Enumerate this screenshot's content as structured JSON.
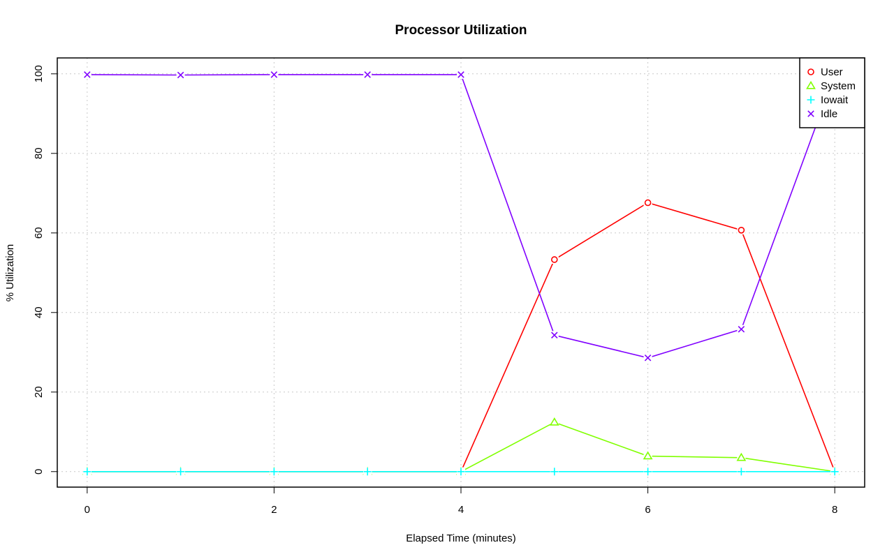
{
  "chart_data": {
    "type": "line",
    "title": "Processor Utilization",
    "xlabel": "Elapsed Time (minutes)",
    "ylabel": "% Utilization",
    "x": [
      0,
      1,
      2,
      3,
      4,
      5,
      6,
      7,
      8
    ],
    "xlim": [
      -0.32,
      8.32
    ],
    "ylim": [
      -3.9,
      104
    ],
    "xticks": [
      0,
      2,
      4,
      6,
      8
    ],
    "yticks": [
      0,
      20,
      40,
      60,
      80,
      100
    ],
    "grid": true,
    "legend_position": "top-right",
    "series": [
      {
        "name": "User",
        "color": "#ff0000",
        "marker": "circle",
        "values": [
          0,
          0,
          0,
          0,
          0,
          53.3,
          67.6,
          60.7,
          0
        ]
      },
      {
        "name": "System",
        "color": "#80ff00",
        "marker": "triangle",
        "values": [
          0,
          0,
          0,
          0,
          0,
          12.4,
          3.9,
          3.5,
          0
        ]
      },
      {
        "name": "Iowait",
        "color": "#00ffff",
        "marker": "plus",
        "values": [
          0,
          0,
          0,
          0,
          0,
          0,
          0,
          0,
          0
        ]
      },
      {
        "name": "Idle",
        "color": "#8000ff",
        "marker": "cross",
        "values": [
          99.8,
          99.7,
          99.8,
          99.8,
          99.8,
          34.3,
          28.6,
          35.8,
          99.8
        ]
      }
    ]
  }
}
